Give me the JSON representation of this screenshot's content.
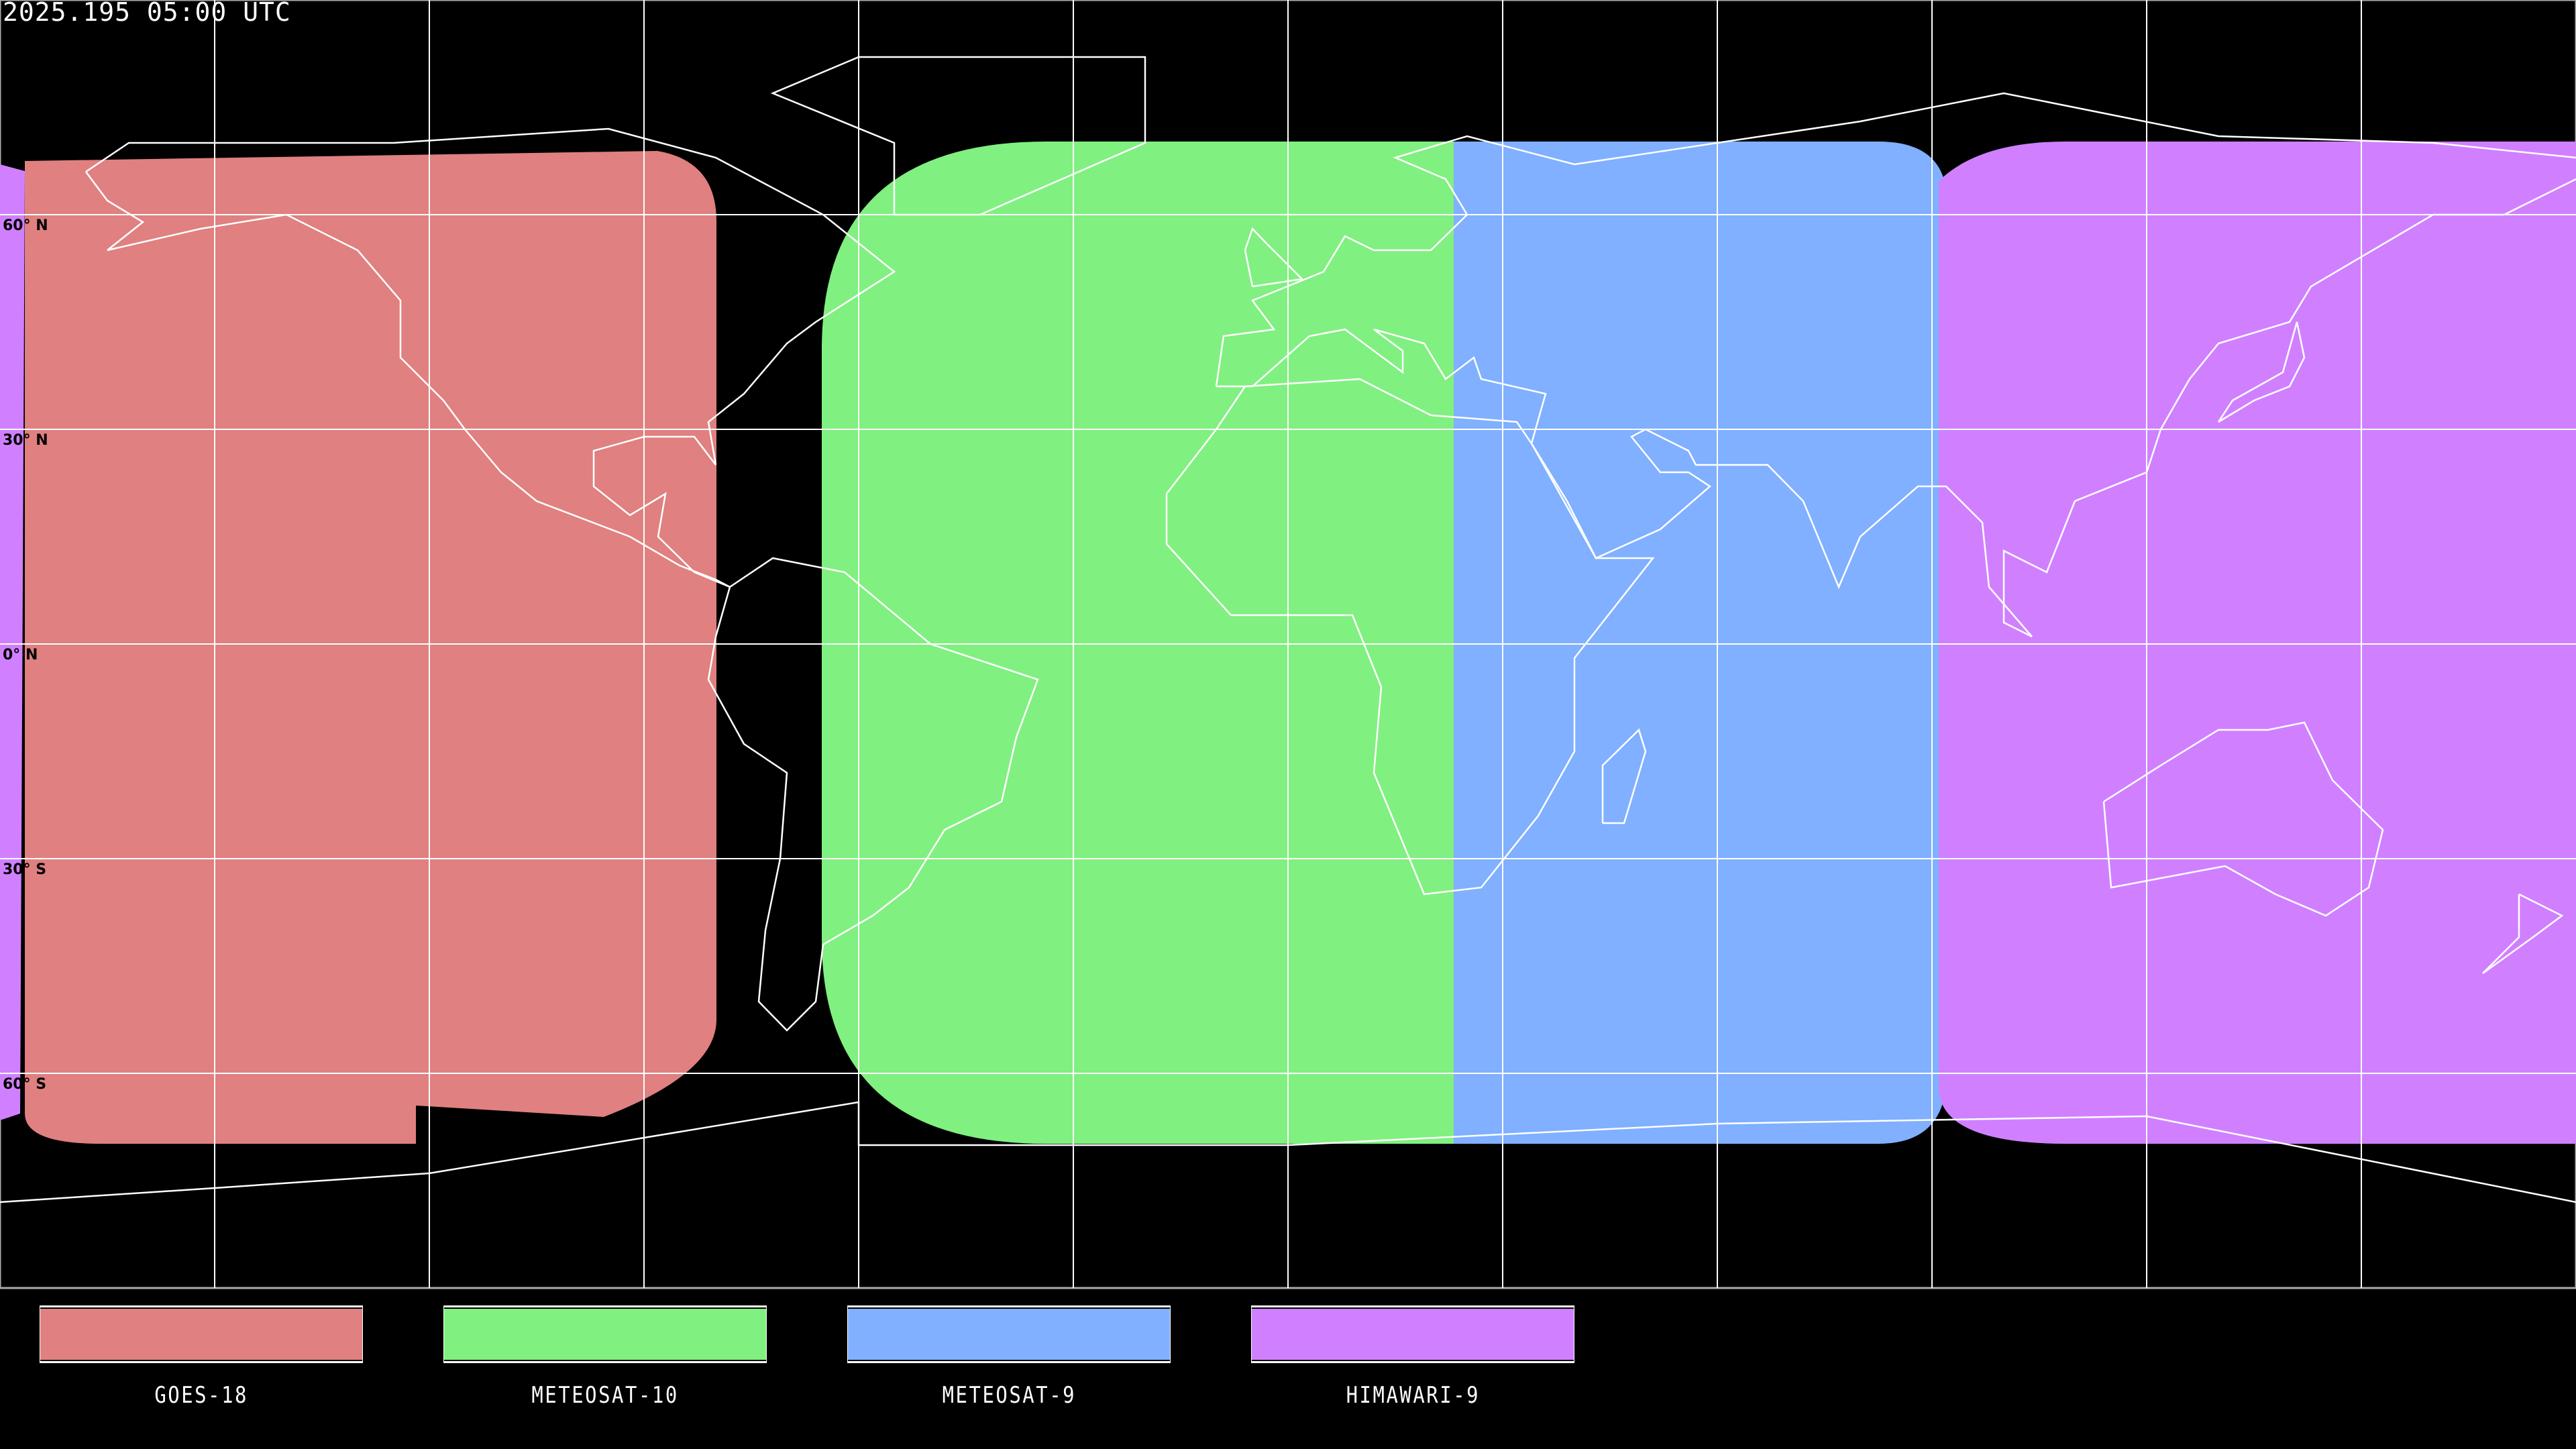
{
  "title": "2025.195 05:00 UTC",
  "map": {
    "projection": "equirectangular",
    "lon_range": [
      -180,
      180
    ],
    "lat_range": [
      -90,
      90
    ],
    "grid_spacing_deg": 30,
    "lat_labels": [
      "60° N",
      "30° N",
      "0° N",
      "30° S",
      "60° S"
    ]
  },
  "legend": [
    {
      "label": "GOES-18",
      "color": "#e08080"
    },
    {
      "label": "METEOSAT-10",
      "color": "#80f080"
    },
    {
      "label": "METEOSAT-9",
      "color": "#80b0ff"
    },
    {
      "label": "HIMAWARI-9",
      "color": "#d080ff"
    }
  ]
}
